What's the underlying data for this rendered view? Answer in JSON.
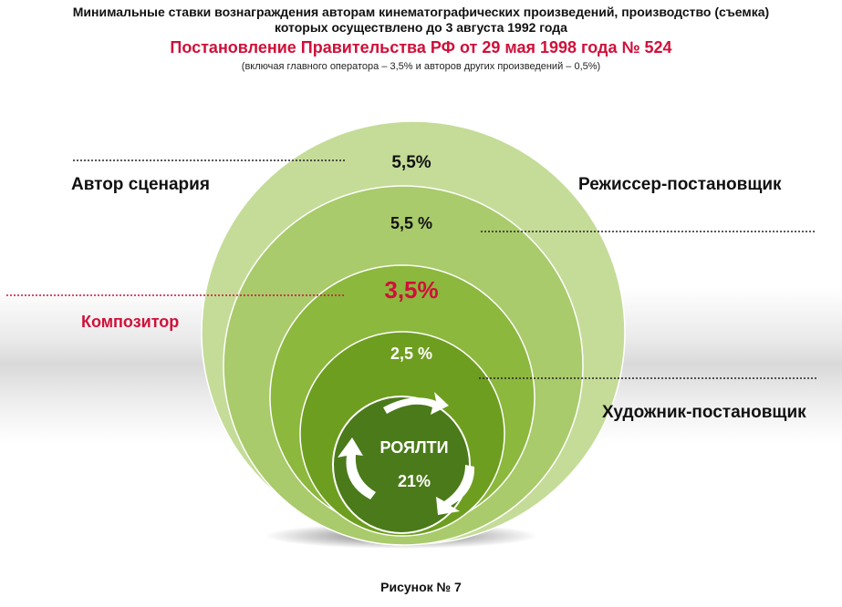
{
  "header": {
    "line1": "Минимальные ставки вознаграждения авторам кинематографических произведений, производство (съемка)",
    "line2": "которых осуществлено до 3 августа 1992 года",
    "decree": "Постановление Правительства РФ от 29 мая 1998 года № 524",
    "note": "(включая главного оператора – 3,5% и авторов других произведений – 0,5%)"
  },
  "rings": [
    {
      "label": "Автор сценария",
      "value": "5,5%",
      "color": "#c5dc99"
    },
    {
      "label": "Режиссер-постановщик",
      "value": "5,5 %",
      "color": "#a9cb6b"
    },
    {
      "label": "Композитор",
      "value": "3,5%",
      "color": "#8cb83e",
      "value_color": "#d0103a",
      "label_color": "#d0103a"
    },
    {
      "label": "Художник-постановщик",
      "value": "2,5 %",
      "color": "#6e9e1f"
    }
  ],
  "center": {
    "title": "РОЯЛТИ",
    "value": "21%",
    "color": "#4b7a1a"
  },
  "caption": "Рисунок № 7",
  "accent_red": "#d0103a"
}
